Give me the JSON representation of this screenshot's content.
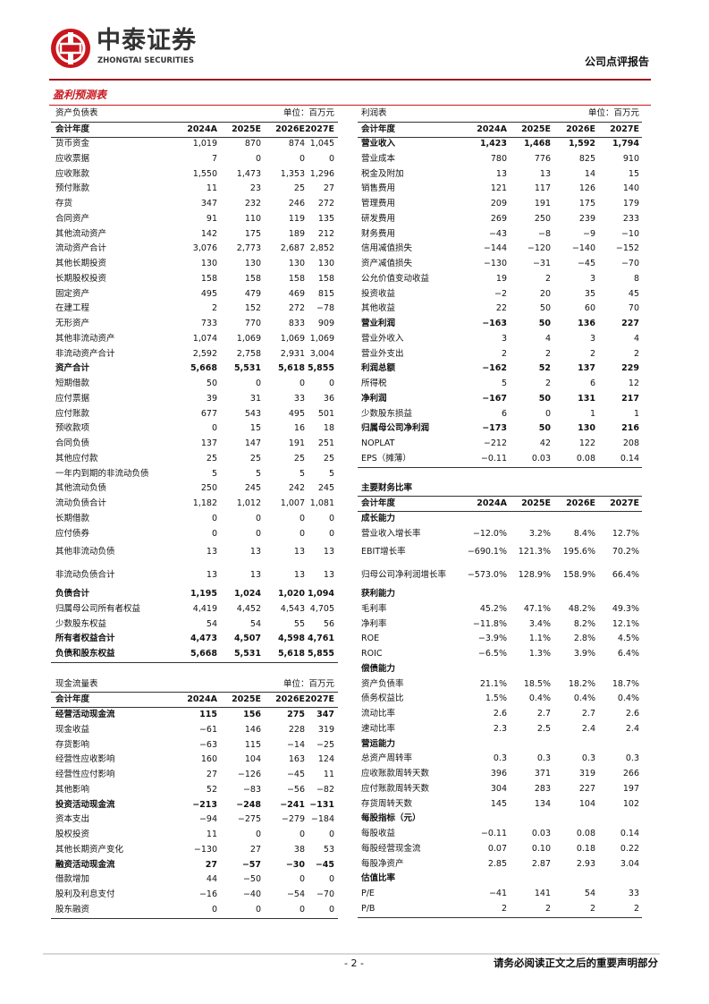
{
  "header": {
    "company_cn": "中泰证券",
    "company_en": "ZHONGTAI SECURITIES",
    "report_type": "公司点评报告"
  },
  "section_title": "盈利预测表",
  "balance_sheet": {
    "title": "资产负债表",
    "unit": "单位：百万元",
    "columns": [
      "会计年度",
      "2024A",
      "2025E",
      "2026E",
      "2027E"
    ],
    "rows": [
      {
        "label": "货币资金",
        "values": [
          "1,019",
          "870",
          "874",
          "1,045"
        ]
      },
      {
        "label": "应收票据",
        "values": [
          "7",
          "0",
          "0",
          "0"
        ]
      },
      {
        "label": "应收账款",
        "values": [
          "1,550",
          "1,473",
          "1,353",
          "1,296"
        ]
      },
      {
        "label": "预付账款",
        "values": [
          "11",
          "23",
          "25",
          "27"
        ]
      },
      {
        "label": "存货",
        "values": [
          "347",
          "232",
          "246",
          "272"
        ]
      },
      {
        "label": "合同资产",
        "values": [
          "91",
          "110",
          "119",
          "135"
        ]
      },
      {
        "label": "其他流动资产",
        "values": [
          "142",
          "175",
          "189",
          "212"
        ]
      },
      {
        "label": "流动资产合计",
        "values": [
          "3,076",
          "2,773",
          "2,687",
          "2,852"
        ]
      },
      {
        "label": "其他长期投资",
        "values": [
          "130",
          "130",
          "130",
          "130"
        ]
      },
      {
        "label": "长期股权投资",
        "values": [
          "158",
          "158",
          "158",
          "158"
        ]
      },
      {
        "label": "固定资产",
        "values": [
          "495",
          "479",
          "469",
          "815"
        ]
      },
      {
        "label": "在建工程",
        "values": [
          "2",
          "152",
          "272",
          "−78"
        ]
      },
      {
        "label": "无形资产",
        "values": [
          "733",
          "770",
          "833",
          "909"
        ]
      },
      {
        "label": "其他非流动资产",
        "values": [
          "1,074",
          "1,069",
          "1,069",
          "1,069"
        ]
      },
      {
        "label": "非流动资产合计",
        "values": [
          "2,592",
          "2,758",
          "2,931",
          "3,004"
        ]
      },
      {
        "label": "资产合计",
        "values": [
          "5,668",
          "5,531",
          "5,618",
          "5,855"
        ],
        "bold": true
      },
      {
        "label": "短期借款",
        "values": [
          "50",
          "0",
          "0",
          "0"
        ]
      },
      {
        "label": "应付票据",
        "values": [
          "39",
          "31",
          "33",
          "36"
        ]
      },
      {
        "label": "应付账款",
        "values": [
          "677",
          "543",
          "495",
          "501"
        ]
      },
      {
        "label": "预收款项",
        "values": [
          "0",
          "15",
          "16",
          "18"
        ]
      },
      {
        "label": "合同负债",
        "values": [
          "137",
          "147",
          "191",
          "251"
        ]
      },
      {
        "label": "其他应付款",
        "values": [
          "25",
          "25",
          "25",
          "25"
        ]
      },
      {
        "label": "一年内到期的非流动负债",
        "values": [
          "5",
          "5",
          "5",
          "5"
        ]
      },
      {
        "label": "其他流动负债",
        "values": [
          "250",
          "245",
          "242",
          "245"
        ]
      },
      {
        "label": "流动负债合计",
        "values": [
          "1,182",
          "1,012",
          "1,007",
          "1,081"
        ]
      },
      {
        "label": "长期借款",
        "values": [
          "0",
          "0",
          "0",
          "0"
        ]
      },
      {
        "label": "应付债券",
        "values": [
          "0",
          "0",
          "0",
          "0"
        ]
      },
      {
        "label": "其他非流动负债",
        "values": [
          "13",
          "13",
          "13",
          "13"
        ]
      },
      {
        "label": "非流动负债合计",
        "values": [
          "13",
          "13",
          "13",
          "13"
        ]
      },
      {
        "label": "负债合计",
        "values": [
          "1,195",
          "1,024",
          "1,020",
          "1,094"
        ],
        "bold": true
      },
      {
        "label": "归属母公司所有者权益",
        "values": [
          "4,419",
          "4,452",
          "4,543",
          "4,705"
        ]
      },
      {
        "label": "少数股东权益",
        "values": [
          "54",
          "54",
          "55",
          "56"
        ]
      },
      {
        "label": "所有者权益合计",
        "values": [
          "4,473",
          "4,507",
          "4,598",
          "4,761"
        ],
        "bold": true
      },
      {
        "label": "负债和股东权益",
        "values": [
          "5,668",
          "5,531",
          "5,618",
          "5,855"
        ],
        "bold": true
      }
    ]
  },
  "income_statement": {
    "title": "利润表",
    "unit": "单位：百万元",
    "columns": [
      "会计年度",
      "2024A",
      "2025E",
      "2026E",
      "2027E"
    ],
    "rows": [
      {
        "label": "营业收入",
        "values": [
          "1,423",
          "1,468",
          "1,592",
          "1,794"
        ],
        "bold": true
      },
      {
        "label": "营业成本",
        "values": [
          "780",
          "776",
          "825",
          "910"
        ]
      },
      {
        "label": "税金及附加",
        "values": [
          "13",
          "13",
          "14",
          "15"
        ]
      },
      {
        "label": "销售费用",
        "values": [
          "121",
          "117",
          "126",
          "140"
        ]
      },
      {
        "label": "管理费用",
        "values": [
          "209",
          "191",
          "175",
          "179"
        ]
      },
      {
        "label": "研发费用",
        "values": [
          "269",
          "250",
          "239",
          "233"
        ]
      },
      {
        "label": "财务费用",
        "values": [
          "−43",
          "−8",
          "−9",
          "−10"
        ]
      },
      {
        "label": "信用减值损失",
        "values": [
          "−144",
          "−120",
          "−140",
          "−152"
        ]
      },
      {
        "label": "资产减值损失",
        "values": [
          "−130",
          "−31",
          "−45",
          "−70"
        ]
      },
      {
        "label": "公允价值变动收益",
        "values": [
          "19",
          "2",
          "3",
          "8"
        ]
      },
      {
        "label": "投资收益",
        "values": [
          "−2",
          "20",
          "35",
          "45"
        ]
      },
      {
        "label": "其他收益",
        "values": [
          "22",
          "50",
          "60",
          "70"
        ]
      },
      {
        "label": "营业利润",
        "values": [
          "−163",
          "50",
          "136",
          "227"
        ],
        "bold": true
      },
      {
        "label": "营业外收入",
        "values": [
          "3",
          "4",
          "3",
          "4"
        ]
      },
      {
        "label": "营业外支出",
        "values": [
          "2",
          "2",
          "2",
          "2"
        ]
      },
      {
        "label": "利润总额",
        "values": [
          "−162",
          "52",
          "137",
          "229"
        ],
        "bold": true
      },
      {
        "label": "所得税",
        "values": [
          "5",
          "2",
          "6",
          "12"
        ]
      },
      {
        "label": "净利润",
        "values": [
          "−167",
          "50",
          "131",
          "217"
        ],
        "bold": true
      },
      {
        "label": "少数股东损益",
        "values": [
          "6",
          "0",
          "1",
          "1"
        ]
      },
      {
        "label": "归属母公司净利润",
        "values": [
          "−173",
          "50",
          "130",
          "216"
        ],
        "bold": true
      },
      {
        "label": "NOPLAT",
        "values": [
          "−212",
          "42",
          "122",
          "208"
        ]
      },
      {
        "label": "EPS（摊薄）",
        "values": [
          "−0.11",
          "0.03",
          "0.08",
          "0.14"
        ]
      }
    ]
  },
  "financial_ratios": {
    "title": "主要财务比率",
    "columns": [
      "会计年度",
      "2024A",
      "2025E",
      "2026E",
      "2027E"
    ],
    "rows": [
      {
        "label": "成长能力",
        "bold": true
      },
      {
        "label": "营业收入增长率",
        "values": [
          "−12.0%",
          "3.2%",
          "8.4%",
          "12.7%"
        ]
      },
      {
        "label": "EBIT增长率",
        "values": [
          "−690.1%",
          "121.3%",
          "195.6%",
          "70.2%"
        ]
      },
      {
        "label": "归母公司净利润增长率",
        "values": [
          "−573.0%",
          "128.9%",
          "158.9%",
          "66.4%"
        ]
      },
      {
        "label": "获利能力",
        "bold": true
      },
      {
        "label": "毛利率",
        "values": [
          "45.2%",
          "47.1%",
          "48.2%",
          "49.3%"
        ]
      },
      {
        "label": "净利率",
        "values": [
          "−11.8%",
          "3.4%",
          "8.2%",
          "12.1%"
        ]
      },
      {
        "label": "ROE",
        "values": [
          "−3.9%",
          "1.1%",
          "2.8%",
          "4.5%"
        ]
      },
      {
        "label": "ROIC",
        "values": [
          "−6.5%",
          "1.3%",
          "3.9%",
          "6.4%"
        ]
      },
      {
        "label": "偿债能力",
        "bold": true
      },
      {
        "label": "资产负债率",
        "values": [
          "21.1%",
          "18.5%",
          "18.2%",
          "18.7%"
        ]
      },
      {
        "label": "债务权益比",
        "values": [
          "1.5%",
          "0.4%",
          "0.4%",
          "0.4%"
        ]
      },
      {
        "label": "流动比率",
        "values": [
          "2.6",
          "2.7",
          "2.7",
          "2.6"
        ]
      },
      {
        "label": "速动比率",
        "values": [
          "2.3",
          "2.5",
          "2.4",
          "2.4"
        ]
      },
      {
        "label": "营运能力",
        "bold": true
      },
      {
        "label": "总资产周转率",
        "values": [
          "0.3",
          "0.3",
          "0.3",
          "0.3"
        ]
      },
      {
        "label": "应收账款周转天数",
        "values": [
          "396",
          "371",
          "319",
          "266"
        ]
      },
      {
        "label": "应付账款周转天数",
        "values": [
          "304",
          "283",
          "227",
          "197"
        ]
      },
      {
        "label": "存货周转天数",
        "values": [
          "145",
          "134",
          "104",
          "102"
        ]
      },
      {
        "label": "每股指标（元）",
        "bold": true
      },
      {
        "label": "每股收益",
        "values": [
          "−0.11",
          "0.03",
          "0.08",
          "0.14"
        ]
      },
      {
        "label": "每股经营现金流",
        "values": [
          "0.07",
          "0.10",
          "0.18",
          "0.22"
        ]
      },
      {
        "label": "每股净资产",
        "values": [
          "2.85",
          "2.87",
          "2.93",
          "3.04"
        ]
      },
      {
        "label": "估值比率",
        "bold": true
      },
      {
        "label": "P/E",
        "values": [
          "−41",
          "141",
          "54",
          "33"
        ]
      },
      {
        "label": "P/B",
        "values": [
          "2",
          "2",
          "2",
          "2"
        ]
      }
    ]
  },
  "cash_flow": {
    "title": "现金流量表",
    "unit": "单位：百万元",
    "columns": [
      "会计年度",
      "2024A",
      "2025E",
      "2026E",
      "2027E"
    ],
    "rows": [
      {
        "label": "经营活动现金流",
        "values": [
          "115",
          "156",
          "275",
          "347"
        ],
        "bold": true
      },
      {
        "label": "现金收益",
        "values": [
          "−61",
          "146",
          "228",
          "319"
        ]
      },
      {
        "label": "存货影响",
        "values": [
          "−63",
          "115",
          "−14",
          "−25"
        ]
      },
      {
        "label": "经营性应收影响",
        "values": [
          "160",
          "104",
          "163",
          "124"
        ]
      },
      {
        "label": "经营性应付影响",
        "values": [
          "27",
          "−126",
          "−45",
          "11"
        ]
      },
      {
        "label": "其他影响",
        "values": [
          "52",
          "−83",
          "−56",
          "−82"
        ]
      },
      {
        "label": "投资活动现金流",
        "values": [
          "−213",
          "−248",
          "−241",
          "−131"
        ],
        "bold": true
      },
      {
        "label": "资本支出",
        "values": [
          "−94",
          "−275",
          "−279",
          "−184"
        ]
      },
      {
        "label": "股权投资",
        "values": [
          "11",
          "0",
          "0",
          "0"
        ]
      },
      {
        "label": "其他长期资产变化",
        "values": [
          "−130",
          "27",
          "38",
          "53"
        ]
      },
      {
        "label": "融资活动现金流",
        "values": [
          "27",
          "−57",
          "−30",
          "−45"
        ],
        "bold": true
      },
      {
        "label": "借款增加",
        "values": [
          "44",
          "−50",
          "0",
          "0"
        ]
      },
      {
        "label": "股利及利息支付",
        "values": [
          "−16",
          "−40",
          "−54",
          "−70"
        ]
      },
      {
        "label": "股东融资",
        "values": [
          "0",
          "0",
          "0",
          "0"
        ]
      }
    ]
  },
  "footer": {
    "page_number": "- 2 -",
    "disclaimer": "请务必阅读正文之后的重要声明部分"
  }
}
